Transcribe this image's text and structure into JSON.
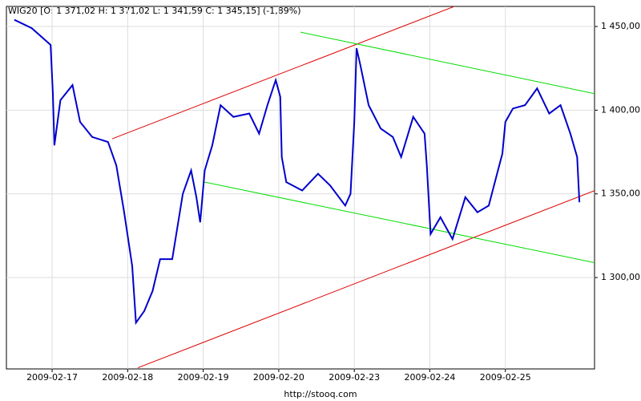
{
  "chart_data": {
    "type": "line",
    "title": "WIG20 [O: 1 371,02  H: 1 371,02  L: 1 341,59  C: 1 345,15] (-1,89%)",
    "footer": "http://stooq.com",
    "xlim": [
      -0.605,
      7.18
    ],
    "ylim": [
      1245.4,
      1462
    ],
    "xticks": [
      {
        "value": 0,
        "label": "2009-02-17"
      },
      {
        "value": 1,
        "label": "2009-02-18"
      },
      {
        "value": 2,
        "label": "2009-02-19"
      },
      {
        "value": 3,
        "label": "2009-02-20"
      },
      {
        "value": 4,
        "label": "2009-02-23"
      },
      {
        "value": 5,
        "label": "2009-02-24"
      },
      {
        "value": 6,
        "label": "2009-02-25"
      }
    ],
    "yticks": [
      {
        "value": 1300,
        "label": "1 300,00"
      },
      {
        "value": 1350,
        "label": "1 350,00"
      },
      {
        "value": 1400,
        "label": "1 400,00"
      },
      {
        "value": 1450,
        "label": "1 450,00"
      }
    ],
    "grid": true,
    "series": [
      {
        "color": "#0000cc",
        "x": [
          -0.5,
          -0.27,
          -0.02,
          0.01,
          0.03,
          0.11,
          0.27,
          0.37,
          0.53,
          0.74,
          0.85,
          0.95,
          1.06,
          1.11,
          1.22,
          1.33,
          1.43,
          1.59,
          1.73,
          1.84,
          1.91,
          1.96,
          2.02,
          2.12,
          2.23,
          2.4,
          2.61,
          2.74,
          2.85,
          2.96,
          3.02,
          3.04,
          3.1,
          3.31,
          3.52,
          3.68,
          3.88,
          3.95,
          4.0,
          4.03,
          4.08,
          4.19,
          4.35,
          4.51,
          4.62,
          4.78,
          4.93,
          4.96,
          5.01,
          5.14,
          5.3,
          5.47,
          5.63,
          5.78,
          5.89,
          5.96,
          6.0,
          6.1,
          6.26,
          6.42,
          6.58,
          6.73,
          6.86,
          6.95,
          6.98
        ],
        "values": [
          1454,
          1449,
          1439,
          1410,
          1379,
          1406,
          1415,
          1393,
          1384,
          1381,
          1367,
          1340,
          1307,
          1273,
          1280,
          1292,
          1311,
          1311,
          1350,
          1364,
          1348,
          1333,
          1364,
          1379,
          1403,
          1396,
          1398,
          1386,
          1403,
          1418,
          1408,
          1372,
          1357,
          1352,
          1362,
          1355,
          1343,
          1350,
          1393,
          1437,
          1427,
          1403,
          1389,
          1384,
          1372,
          1396,
          1386,
          1367,
          1326,
          1336,
          1323,
          1348,
          1339,
          1343,
          1362,
          1374,
          1393,
          1401,
          1403,
          1413,
          1398,
          1403,
          1386,
          1372,
          1345
        ]
      }
    ],
    "trendlines": [
      {
        "color": "#dd0000",
        "x": [
          0.795,
          5.41
        ],
        "y": [
          1382.9,
          1463.5
        ]
      },
      {
        "color": "#dd0000",
        "x": [
          1.135,
          7.18
        ],
        "y": [
          1246.1,
          1351.9
        ]
      },
      {
        "color": "#00dd00",
        "x": [
          3.29,
          7.18
        ],
        "y": [
          1446.6,
          1409.9
        ]
      },
      {
        "color": "#00dd00",
        "x": [
          2.0,
          7.18
        ],
        "y": [
          1357.2,
          1308.9
        ]
      }
    ]
  }
}
